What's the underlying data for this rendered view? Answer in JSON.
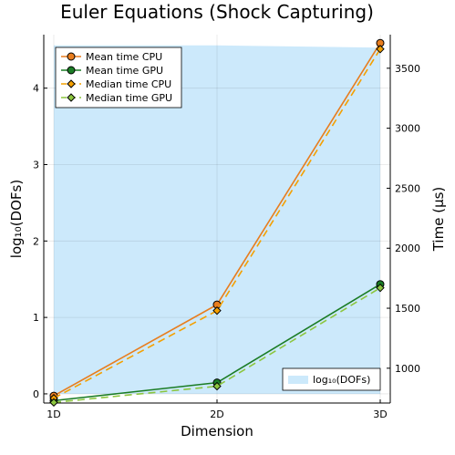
{
  "chart_data": {
    "type": "line",
    "title": "Euler Equations (Shock Capturing)",
    "xlabel": "Dimension",
    "ylabel_left": "log₁₀(DOFs)",
    "ylabel_right": "Time (μs)",
    "categories": [
      "1D",
      "2D",
      "3D"
    ],
    "left_axis": {
      "ylim": [
        -0.12,
        4.7
      ],
      "ticks": [
        "0",
        "1",
        "2",
        "3",
        "4"
      ],
      "tick_values": [
        0,
        1,
        2,
        3,
        4
      ]
    },
    "right_axis": {
      "ylim": [
        710,
        3780
      ],
      "ticks": [
        "1000",
        "1500",
        "2000",
        "2500",
        "3000",
        "3500"
      ],
      "tick_values": [
        1000,
        1500,
        2000,
        2500,
        3000,
        3500
      ]
    },
    "area": {
      "name": "log₁₀(DOFs)",
      "axis": "left",
      "values": [
        4.56,
        4.56,
        4.53
      ],
      "color": "#cce9fb"
    },
    "series": [
      {
        "name": "Mean time CPU",
        "axis": "right",
        "values": [
          770,
          1530,
          3710
        ],
        "color": "#e87d1e",
        "marker": "circle",
        "dash": "solid"
      },
      {
        "name": "Mean time GPU",
        "axis": "right",
        "values": [
          730,
          880,
          1700
        ],
        "color": "#1b7d26",
        "marker": "circle",
        "dash": "solid"
      },
      {
        "name": "Median time CPU",
        "axis": "right",
        "values": [
          750,
          1480,
          3660
        ],
        "color": "#f4a000",
        "marker": "diamond",
        "dash": "dashed"
      },
      {
        "name": "Median time GPU",
        "axis": "right",
        "values": [
          715,
          850,
          1670
        ],
        "color": "#8cc63f",
        "marker": "diamond",
        "dash": "dashed"
      }
    ],
    "legend_position": "top-left",
    "area_legend_position": "bottom-right",
    "grid": true
  }
}
